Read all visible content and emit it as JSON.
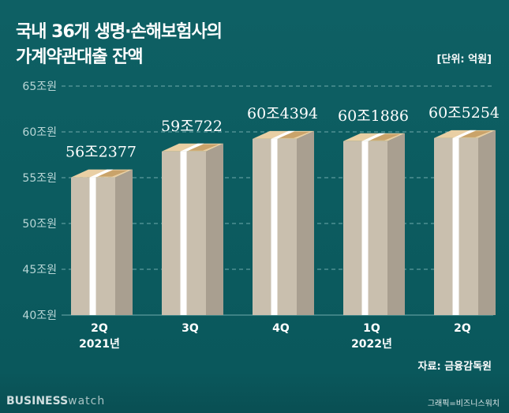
{
  "title_line1": "국내 36개 생명·손해보험사의",
  "title_line2": "가계약관대출 잔액",
  "unit": "[단위: 억원]",
  "source": "자료: 금융감독원",
  "logo": {
    "bold": "BUSINESS",
    "light": "watch"
  },
  "credit": "그래픽=비즈니스워치",
  "colors": {
    "background": "#0b5c60",
    "front": "#c9bfae",
    "side": "#a99f90",
    "top": "#e9cfa4",
    "band": "#ffffff"
  },
  "chart_data": {
    "type": "bar",
    "title": "국내 36개 생명·손해보험사의 가계약관대출 잔액",
    "ylabel": "억원",
    "ylim": [
      40,
      65
    ],
    "yticks": [
      40,
      45,
      50,
      55,
      60,
      65
    ],
    "ytick_labels": [
      "40조원",
      "45조원",
      "50조원",
      "55조원",
      "60조원",
      "65조원"
    ],
    "grid": true,
    "categories": [
      "2Q",
      "3Q",
      "4Q",
      "1Q",
      "2Q"
    ],
    "year_labels": [
      "2021년",
      "",
      "",
      "2022년",
      ""
    ],
    "values": [
      56.2377,
      59.0722,
      60.4394,
      60.1886,
      60.5254
    ],
    "data_labels": [
      "56조2377",
      "59조722",
      "60조4394",
      "60조1886",
      "60조5254"
    ]
  }
}
